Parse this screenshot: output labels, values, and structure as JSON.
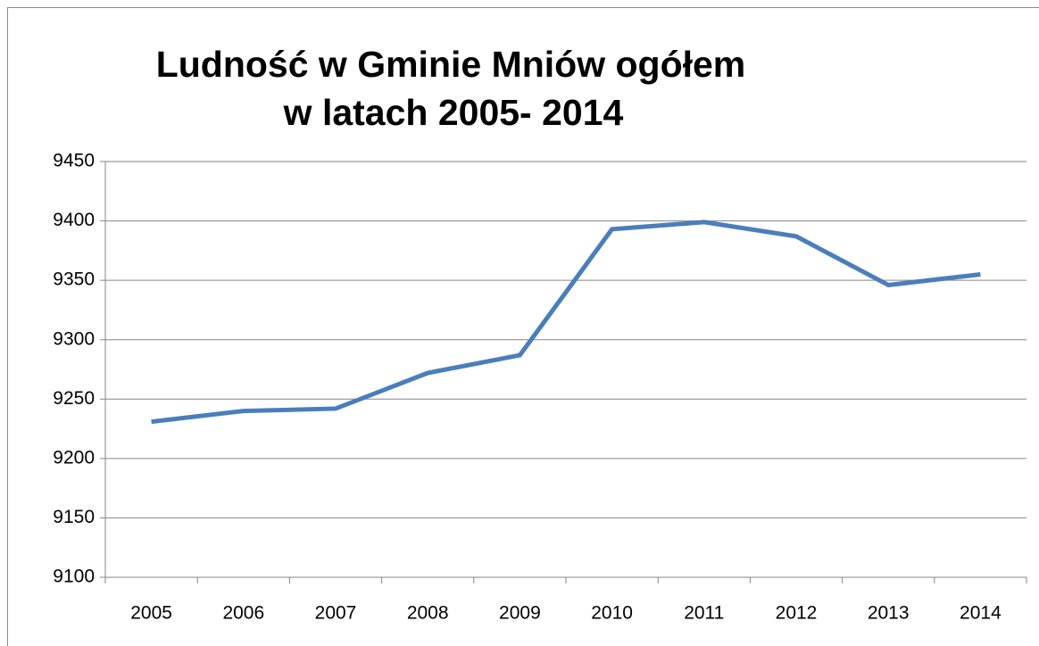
{
  "chart_data": {
    "type": "line",
    "title": [
      "Ludność w Gminie Mniów ogółem",
      "w latach 2005- 2014"
    ],
    "categories": [
      "2005",
      "2006",
      "2007",
      "2008",
      "2009",
      "2010",
      "2011",
      "2012",
      "2013",
      "2014"
    ],
    "series": [
      {
        "color": "#4a7ebb",
        "values": [
          9231,
          9240,
          9242,
          9272,
          9287,
          9393,
          9399,
          9387,
          9346,
          9355
        ]
      }
    ],
    "ylim": [
      9100,
      9450
    ],
    "yticks": [
      9100,
      9150,
      9200,
      9250,
      9300,
      9350,
      9400,
      9450
    ],
    "grid": true
  }
}
